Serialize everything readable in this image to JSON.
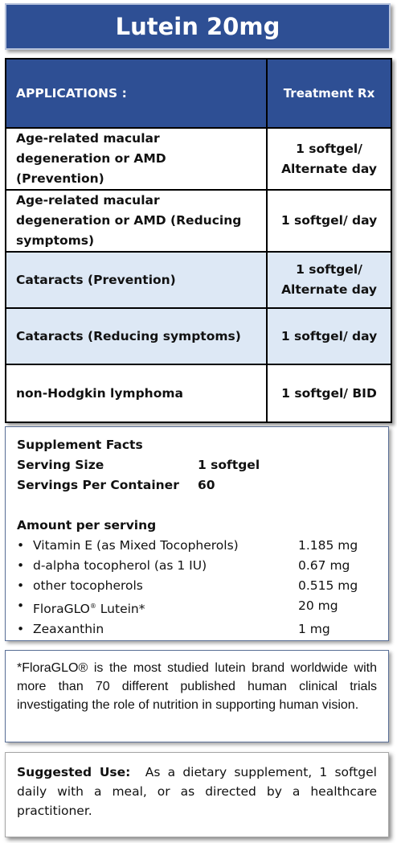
{
  "title": "Lutein 20mg",
  "table": {
    "header": {
      "applications": "APPLICATIONS :",
      "treatment": "Treatment  Rx"
    },
    "rows": [
      {
        "application": "Age-related macular degeneration or AMD (Prevention)",
        "dose": "1 softgel/ Alternate day"
      },
      {
        "application": "Age-related macular degeneration or AMD (Reducing symptoms)",
        "dose": "1 softgel/ day"
      },
      {
        "application": "Cataracts (Prevention)",
        "dose": "1 softgel/ Alternate day"
      },
      {
        "application": "Cataracts (Reducing symptoms)",
        "dose": "1 softgel/ day"
      },
      {
        "application": "non-Hodgkin lymphoma",
        "dose": "1 softgel/ BID"
      }
    ]
  },
  "facts": {
    "heading": "Supplement Facts",
    "serving_size_label": "Serving Size",
    "serving_size_value": "1 softgel",
    "servings_label": "Servings Per Container",
    "servings_value": "60",
    "amount_heading": "Amount per serving",
    "bullet": "•",
    "items": [
      {
        "name": "Vitamin E (as Mixed Tocopherols)",
        "amount": "1.185 mg"
      },
      {
        "name": "d-alpha tocopherol (as 1 IU)",
        "amount": "0.67 mg"
      },
      {
        "name": "other tocopherols",
        "amount": "0.515 mg"
      },
      {
        "name_main": "FloraGLO",
        "name_sup": "®",
        "name_rest": " Lutein*",
        "amount": "20 mg"
      },
      {
        "name": "Zeaxanthin",
        "amount": "1 mg"
      }
    ]
  },
  "note": "*FloraGLO® is the most studied lutein brand worldwide with more than 70 different published human clinical trials investigating the role of nutrition in supporting human vision.",
  "suggested_use": {
    "label": "Suggested Use:",
    "text": "As a dietary supplement, 1 softgel daily with a meal, or as directed by a healthcare practitioner."
  }
}
